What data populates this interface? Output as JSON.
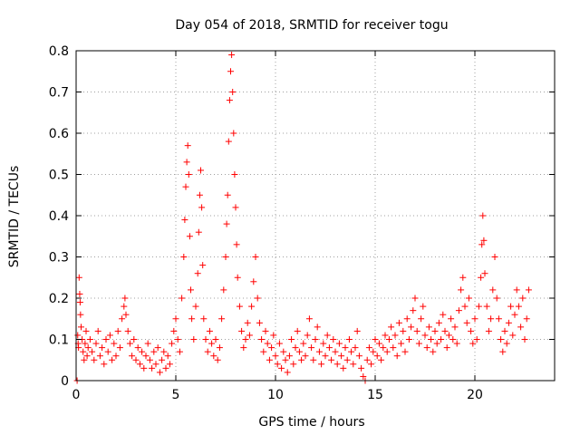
{
  "chart_data": {
    "type": "scatter",
    "title": "Day 054 of 2018, SRMTID for receiver togu",
    "xlabel": "GPS time / hours",
    "ylabel": "SRMTID / TECUs",
    "xlim": [
      0,
      24
    ],
    "ylim": [
      0,
      0.8
    ],
    "xticks": [
      0,
      5,
      10,
      15,
      20
    ],
    "xtick_labels": [
      "0",
      "5",
      "10",
      "15",
      "20"
    ],
    "yticks": [
      0,
      0.1,
      0.2,
      0.3,
      0.4,
      0.5,
      0.6,
      0.7,
      0.8
    ],
    "ytick_labels": [
      "0",
      "0.1",
      "0.2",
      "0.3",
      "0.4",
      "0.5",
      "0.6",
      "0.7",
      "0.8"
    ],
    "grid": true,
    "marker": "+",
    "colors": {
      "series": "#ff0000",
      "axis": "#000000",
      "grid": "#a0a0a0"
    },
    "series": [
      {
        "name": "SRMTID",
        "points": [
          [
            0.05,
            0.0
          ],
          [
            0.08,
            0.11
          ],
          [
            0.1,
            0.09
          ],
          [
            0.12,
            0.08
          ],
          [
            0.15,
            0.25
          ],
          [
            0.18,
            0.21
          ],
          [
            0.2,
            0.19
          ],
          [
            0.22,
            0.16
          ],
          [
            0.25,
            0.13
          ],
          [
            0.3,
            0.1
          ],
          [
            0.35,
            0.07
          ],
          [
            0.4,
            0.05
          ],
          [
            0.45,
            0.09
          ],
          [
            0.5,
            0.12
          ],
          [
            0.55,
            0.06
          ],
          [
            0.6,
            0.08
          ],
          [
            0.7,
            0.1
          ],
          [
            0.8,
            0.07
          ],
          [
            0.9,
            0.05
          ],
          [
            1.0,
            0.09
          ],
          [
            1.1,
            0.12
          ],
          [
            1.2,
            0.06
          ],
          [
            1.3,
            0.08
          ],
          [
            1.4,
            0.04
          ],
          [
            1.5,
            0.1
          ],
          [
            1.6,
            0.07
          ],
          [
            1.7,
            0.11
          ],
          [
            1.8,
            0.05
          ],
          [
            1.9,
            0.09
          ],
          [
            2.0,
            0.06
          ],
          [
            2.1,
            0.12
          ],
          [
            2.2,
            0.08
          ],
          [
            2.3,
            0.15
          ],
          [
            2.4,
            0.18
          ],
          [
            2.45,
            0.2
          ],
          [
            2.5,
            0.16
          ],
          [
            2.6,
            0.12
          ],
          [
            2.7,
            0.09
          ],
          [
            2.8,
            0.06
          ],
          [
            2.9,
            0.1
          ],
          [
            3.0,
            0.05
          ],
          [
            3.1,
            0.08
          ],
          [
            3.2,
            0.04
          ],
          [
            3.3,
            0.07
          ],
          [
            3.4,
            0.03
          ],
          [
            3.5,
            0.06
          ],
          [
            3.6,
            0.09
          ],
          [
            3.7,
            0.05
          ],
          [
            3.8,
            0.03
          ],
          [
            3.9,
            0.07
          ],
          [
            4.0,
            0.04
          ],
          [
            4.1,
            0.08
          ],
          [
            4.2,
            0.02
          ],
          [
            4.3,
            0.05
          ],
          [
            4.4,
            0.07
          ],
          [
            4.5,
            0.03
          ],
          [
            4.6,
            0.06
          ],
          [
            4.7,
            0.04
          ],
          [
            4.8,
            0.09
          ],
          [
            4.9,
            0.12
          ],
          [
            5.0,
            0.15
          ],
          [
            5.1,
            0.1
          ],
          [
            5.2,
            0.07
          ],
          [
            5.3,
            0.2
          ],
          [
            5.4,
            0.3
          ],
          [
            5.45,
            0.39
          ],
          [
            5.5,
            0.47
          ],
          [
            5.55,
            0.53
          ],
          [
            5.6,
            0.57
          ],
          [
            5.65,
            0.5
          ],
          [
            5.7,
            0.35
          ],
          [
            5.75,
            0.22
          ],
          [
            5.8,
            0.15
          ],
          [
            5.9,
            0.1
          ],
          [
            6.0,
            0.18
          ],
          [
            6.1,
            0.26
          ],
          [
            6.15,
            0.36
          ],
          [
            6.2,
            0.45
          ],
          [
            6.25,
            0.51
          ],
          [
            6.3,
            0.42
          ],
          [
            6.35,
            0.28
          ],
          [
            6.4,
            0.15
          ],
          [
            6.5,
            0.1
          ],
          [
            6.6,
            0.07
          ],
          [
            6.7,
            0.12
          ],
          [
            6.8,
            0.09
          ],
          [
            6.9,
            0.06
          ],
          [
            7.0,
            0.1
          ],
          [
            7.1,
            0.05
          ],
          [
            7.2,
            0.08
          ],
          [
            7.3,
            0.15
          ],
          [
            7.4,
            0.22
          ],
          [
            7.5,
            0.3
          ],
          [
            7.55,
            0.38
          ],
          [
            7.6,
            0.45
          ],
          [
            7.65,
            0.58
          ],
          [
            7.7,
            0.68
          ],
          [
            7.75,
            0.75
          ],
          [
            7.8,
            0.79
          ],
          [
            7.85,
            0.7
          ],
          [
            7.9,
            0.6
          ],
          [
            7.95,
            0.5
          ],
          [
            8.0,
            0.42
          ],
          [
            8.05,
            0.33
          ],
          [
            8.1,
            0.25
          ],
          [
            8.2,
            0.18
          ],
          [
            8.3,
            0.12
          ],
          [
            8.4,
            0.08
          ],
          [
            8.5,
            0.1
          ],
          [
            8.6,
            0.14
          ],
          [
            8.7,
            0.11
          ],
          [
            8.8,
            0.18
          ],
          [
            8.9,
            0.24
          ],
          [
            9.0,
            0.3
          ],
          [
            9.1,
            0.2
          ],
          [
            9.2,
            0.14
          ],
          [
            9.3,
            0.1
          ],
          [
            9.4,
            0.07
          ],
          [
            9.5,
            0.12
          ],
          [
            9.6,
            0.09
          ],
          [
            9.7,
            0.05
          ],
          [
            9.8,
            0.08
          ],
          [
            9.9,
            0.11
          ],
          [
            10.0,
            0.06
          ],
          [
            10.1,
            0.04
          ],
          [
            10.2,
            0.09
          ],
          [
            10.3,
            0.03
          ],
          [
            10.4,
            0.07
          ],
          [
            10.5,
            0.05
          ],
          [
            10.6,
            0.02
          ],
          [
            10.7,
            0.06
          ],
          [
            10.8,
            0.1
          ],
          [
            10.9,
            0.04
          ],
          [
            11.0,
            0.08
          ],
          [
            11.1,
            0.12
          ],
          [
            11.2,
            0.07
          ],
          [
            11.3,
            0.05
          ],
          [
            11.4,
            0.09
          ],
          [
            11.5,
            0.06
          ],
          [
            11.6,
            0.11
          ],
          [
            11.7,
            0.15
          ],
          [
            11.8,
            0.08
          ],
          [
            11.9,
            0.05
          ],
          [
            12.0,
            0.1
          ],
          [
            12.1,
            0.13
          ],
          [
            12.2,
            0.07
          ],
          [
            12.3,
            0.04
          ],
          [
            12.4,
            0.09
          ],
          [
            12.5,
            0.06
          ],
          [
            12.6,
            0.11
          ],
          [
            12.7,
            0.08
          ],
          [
            12.8,
            0.05
          ],
          [
            12.9,
            0.1
          ],
          [
            13.0,
            0.07
          ],
          [
            13.1,
            0.04
          ],
          [
            13.2,
            0.09
          ],
          [
            13.3,
            0.06
          ],
          [
            13.4,
            0.03
          ],
          [
            13.5,
            0.08
          ],
          [
            13.6,
            0.05
          ],
          [
            13.7,
            0.1
          ],
          [
            13.8,
            0.07
          ],
          [
            13.9,
            0.04
          ],
          [
            14.0,
            0.08
          ],
          [
            14.1,
            0.12
          ],
          [
            14.2,
            0.06
          ],
          [
            14.3,
            0.03
          ],
          [
            14.4,
            0.01
          ],
          [
            14.5,
            0.0
          ],
          [
            14.6,
            0.05
          ],
          [
            14.7,
            0.08
          ],
          [
            14.8,
            0.04
          ],
          [
            14.9,
            0.07
          ],
          [
            15.0,
            0.1
          ],
          [
            15.1,
            0.06
          ],
          [
            15.2,
            0.09
          ],
          [
            15.3,
            0.05
          ],
          [
            15.4,
            0.08
          ],
          [
            15.5,
            0.11
          ],
          [
            15.6,
            0.07
          ],
          [
            15.7,
            0.1
          ],
          [
            15.8,
            0.13
          ],
          [
            15.9,
            0.08
          ],
          [
            16.0,
            0.11
          ],
          [
            16.1,
            0.06
          ],
          [
            16.2,
            0.14
          ],
          [
            16.3,
            0.09
          ],
          [
            16.4,
            0.12
          ],
          [
            16.5,
            0.07
          ],
          [
            16.6,
            0.15
          ],
          [
            16.7,
            0.1
          ],
          [
            16.8,
            0.13
          ],
          [
            16.9,
            0.17
          ],
          [
            17.0,
            0.2
          ],
          [
            17.1,
            0.12
          ],
          [
            17.2,
            0.09
          ],
          [
            17.3,
            0.15
          ],
          [
            17.4,
            0.18
          ],
          [
            17.5,
            0.11
          ],
          [
            17.6,
            0.08
          ],
          [
            17.7,
            0.13
          ],
          [
            17.8,
            0.1
          ],
          [
            17.9,
            0.07
          ],
          [
            18.0,
            0.12
          ],
          [
            18.1,
            0.09
          ],
          [
            18.2,
            0.14
          ],
          [
            18.3,
            0.1
          ],
          [
            18.4,
            0.16
          ],
          [
            18.5,
            0.12
          ],
          [
            18.6,
            0.08
          ],
          [
            18.7,
            0.11
          ],
          [
            18.8,
            0.15
          ],
          [
            18.9,
            0.1
          ],
          [
            19.0,
            0.13
          ],
          [
            19.1,
            0.09
          ],
          [
            19.2,
            0.17
          ],
          [
            19.3,
            0.22
          ],
          [
            19.4,
            0.25
          ],
          [
            19.5,
            0.18
          ],
          [
            19.6,
            0.14
          ],
          [
            19.7,
            0.2
          ],
          [
            19.8,
            0.12
          ],
          [
            19.9,
            0.09
          ],
          [
            20.0,
            0.15
          ],
          [
            20.1,
            0.1
          ],
          [
            20.2,
            0.18
          ],
          [
            20.3,
            0.25
          ],
          [
            20.35,
            0.33
          ],
          [
            20.4,
            0.4
          ],
          [
            20.45,
            0.34
          ],
          [
            20.5,
            0.26
          ],
          [
            20.6,
            0.18
          ],
          [
            20.7,
            0.12
          ],
          [
            20.8,
            0.15
          ],
          [
            20.9,
            0.22
          ],
          [
            21.0,
            0.3
          ],
          [
            21.1,
            0.2
          ],
          [
            21.2,
            0.15
          ],
          [
            21.3,
            0.1
          ],
          [
            21.4,
            0.07
          ],
          [
            21.5,
            0.12
          ],
          [
            21.6,
            0.09
          ],
          [
            21.7,
            0.14
          ],
          [
            21.8,
            0.18
          ],
          [
            21.9,
            0.11
          ],
          [
            22.0,
            0.16
          ],
          [
            22.1,
            0.22
          ],
          [
            22.2,
            0.18
          ],
          [
            22.3,
            0.13
          ],
          [
            22.4,
            0.2
          ],
          [
            22.5,
            0.1
          ],
          [
            22.6,
            0.15
          ],
          [
            22.7,
            0.22
          ]
        ]
      }
    ]
  }
}
